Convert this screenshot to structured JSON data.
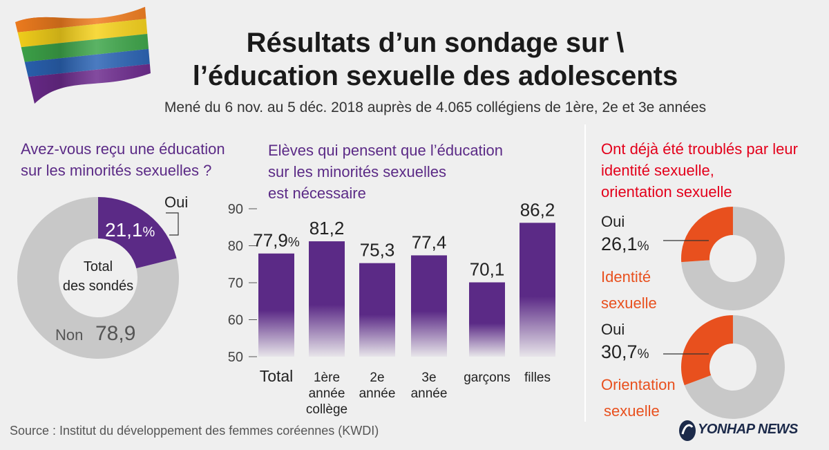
{
  "title_line1": "Résultats d’un sondage sur \\",
  "title_line2": "l’éducation sexuelle des adolescents",
  "subtitle": "Mené du 6 nov. au 5 déc. 2018 auprès de 4.065 collégiens de 1ère, 2e et 3e années",
  "source": "Source : Institut du développement des femmes coréennes (KWDI)",
  "logo": "YONHAP NEWS",
  "colors": {
    "purple": "#5b2a86",
    "orange": "#e8501e",
    "gray": "#c8c8c8",
    "red": "#e3001b"
  },
  "chart_data": [
    {
      "type": "pie",
      "title_line1": "Avez-vous reçu une éducation",
      "title_line2": "sur les minorités sexuelles ?",
      "center_line1": "Total",
      "center_line2": "des sondés",
      "slices": [
        {
          "label": "Oui",
          "value": 21.1,
          "display": "21,1",
          "unit": "%"
        },
        {
          "label": "Non",
          "value": 78.9,
          "display": "78,9"
        }
      ]
    },
    {
      "type": "bar",
      "title_line1": "Elèves qui pensent que l’éducation",
      "title_line2": "sur les minorités sexuelles",
      "title_line3": "est nécessaire",
      "categories": [
        [
          "Total"
        ],
        [
          "1ère",
          "année",
          "collège"
        ],
        [
          "2e",
          "année"
        ],
        [
          "3e",
          "année"
        ],
        [
          "garçons"
        ],
        [
          "filles"
        ]
      ],
      "values": [
        77.9,
        81.2,
        75.3,
        77.4,
        70.1,
        86.2
      ],
      "value_labels": [
        "77,9",
        "81,2",
        "75,3",
        "77,4",
        "70,1",
        "86,2"
      ],
      "first_unit": "%",
      "ylim": [
        50,
        90
      ],
      "yticks": [
        50,
        60,
        70,
        80,
        90
      ]
    },
    {
      "type": "pie",
      "title_line1": "Ont déjà été troublés par leur",
      "title_line2": "identité sexuelle,",
      "title_line3": "orientation sexuelle",
      "donuts": [
        {
          "label": "Oui",
          "value": 26.1,
          "display": "26,1",
          "unit": "%",
          "name_line1": "Identité",
          "name_line2": "sexuelle"
        },
        {
          "label": "Oui",
          "value": 30.7,
          "display": "30,7",
          "unit": "%",
          "name_line1": "Orientation",
          "name_line2": "sexuelle"
        }
      ]
    }
  ]
}
